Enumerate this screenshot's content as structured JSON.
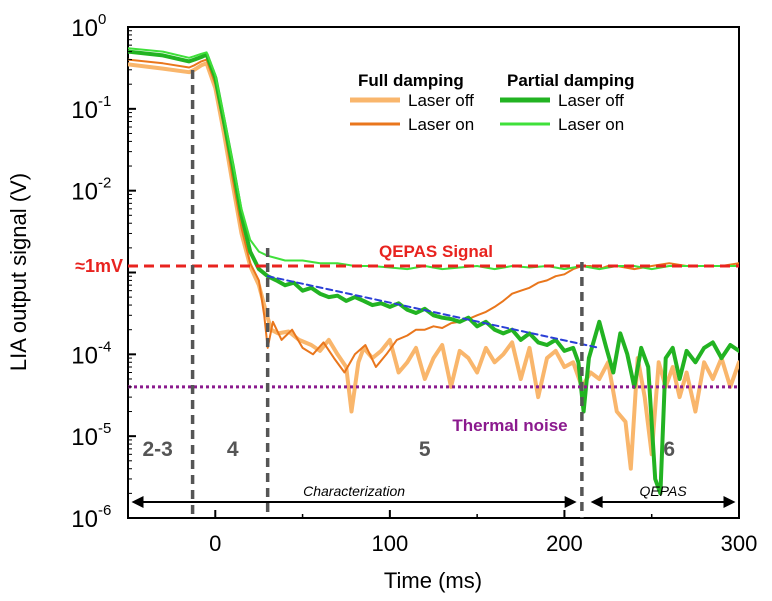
{
  "chart_data": {
    "type": "line",
    "xlabel": "Time (ms)",
    "ylabel": "LIA output signal (V)",
    "xlim": [
      -50,
      300
    ],
    "ylim_log10": [
      -6,
      0
    ],
    "x_ticks": [
      {
        "value": 0,
        "label": "0"
      },
      {
        "value": 100,
        "label": "100"
      },
      {
        "value": 200,
        "label": "200"
      },
      {
        "value": 300,
        "label": "300"
      }
    ],
    "y_ticks": [
      {
        "exp": 0,
        "base": "10",
        "sup": "0"
      },
      {
        "exp": -1,
        "base": "10",
        "sup": "-1"
      },
      {
        "exp": -2,
        "base": "10",
        "sup": "-2"
      },
      {
        "exp": -4,
        "base": "10",
        "sup": "-4"
      },
      {
        "exp": -5,
        "base": "10",
        "sup": "-5"
      },
      {
        "exp": -6,
        "base": "10",
        "sup": "-6"
      }
    ],
    "ref_lines": {
      "qepas_signal": {
        "label": "QEPAS Signal",
        "y": 0.0012,
        "color": "#e8231f"
      },
      "thermal_noise": {
        "label": "Thermal noise",
        "y": 4e-05,
        "color": "#8b1a8e"
      },
      "one_mv_label": "≈1mV"
    },
    "phase_lines_x": [
      -13,
      30,
      210
    ],
    "phase_labels": [
      {
        "label": "2-3",
        "x": -33
      },
      {
        "label": "4",
        "x": 10
      },
      {
        "label": "5",
        "x": 120
      },
      {
        "label": "6",
        "x": 260
      }
    ],
    "arrows": [
      {
        "label": "Characterization",
        "from": -48,
        "to": 207
      },
      {
        "label": "QEPAS",
        "from": 215,
        "to": 298
      }
    ],
    "legend": {
      "full_title": "Full damping",
      "partial_title": "Partial damping",
      "entries": [
        {
          "group": "full",
          "label": "Laser off",
          "color": "#f9b66c",
          "width": 4
        },
        {
          "group": "full",
          "label": "Laser on",
          "color": "#e9761c",
          "width": 2
        },
        {
          "group": "partial",
          "label": "Laser off",
          "color": "#22b322",
          "width": 4
        },
        {
          "group": "partial",
          "label": "Laser on",
          "color": "#3fe03a",
          "width": 2
        }
      ]
    },
    "series": [
      {
        "name": "Full damping – Laser off",
        "color": "#f9b66c",
        "width": 4,
        "points": [
          [
            -50,
            0.35
          ],
          [
            -30,
            0.31
          ],
          [
            -15,
            0.28
          ],
          [
            -12,
            0.3
          ],
          [
            -8,
            0.34
          ],
          [
            -5,
            0.36
          ],
          [
            0,
            0.18
          ],
          [
            5,
            0.05
          ],
          [
            10,
            0.012
          ],
          [
            15,
            0.003
          ],
          [
            20,
            0.0012
          ],
          [
            25,
            0.0007
          ],
          [
            28,
            0.0004
          ],
          [
            32,
            0.0002
          ],
          [
            36,
            0.00018
          ],
          [
            42,
            0.00019
          ],
          [
            48,
            0.00015
          ],
          [
            55,
            0.00013
          ],
          [
            60,
            0.00011
          ],
          [
            65,
            0.00015
          ],
          [
            70,
            0.0001
          ],
          [
            75,
            7e-05
          ],
          [
            78,
            2e-05
          ],
          [
            82,
            8e-05
          ],
          [
            85,
            0.00012
          ],
          [
            90,
            9e-05
          ],
          [
            95,
            0.00011
          ],
          [
            100,
            0.00015
          ],
          [
            105,
            6e-05
          ],
          [
            110,
            8e-05
          ],
          [
            115,
            0.00012
          ],
          [
            120,
            5e-05
          ],
          [
            125,
            9e-05
          ],
          [
            130,
            0.00013
          ],
          [
            135,
            4e-05
          ],
          [
            140,
            0.00011
          ],
          [
            145,
            9e-05
          ],
          [
            150,
            6e-05
          ],
          [
            155,
            0.00012
          ],
          [
            160,
            8e-05
          ],
          [
            165,
            0.0001
          ],
          [
            170,
            0.00014
          ],
          [
            175,
            5e-05
          ],
          [
            180,
            0.00012
          ],
          [
            185,
            3e-05
          ],
          [
            190,
            9e-05
          ],
          [
            195,
            0.00011
          ],
          [
            200,
            7e-05
          ],
          [
            205,
            8e-05
          ],
          [
            210,
            4e-05
          ],
          [
            215,
            6e-05
          ],
          [
            220,
            5e-05
          ],
          [
            225,
            8e-05
          ],
          [
            230,
            2e-05
          ],
          [
            235,
            1.5e-05
          ],
          [
            238,
            4e-06
          ],
          [
            242,
            9e-05
          ],
          [
            246,
            3e-05
          ],
          [
            250,
            6e-06
          ],
          [
            254,
            8e-05
          ],
          [
            258,
            4e-05
          ],
          [
            262,
            7e-05
          ],
          [
            266,
            3e-05
          ],
          [
            270,
            6e-05
          ],
          [
            275,
            2e-05
          ],
          [
            280,
            8e-05
          ],
          [
            285,
            5e-05
          ],
          [
            290,
            9e-05
          ],
          [
            295,
            4e-05
          ],
          [
            300,
            8e-05
          ]
        ]
      },
      {
        "name": "Full damping – Laser on",
        "color": "#e9761c",
        "width": 2,
        "points": [
          [
            -50,
            0.4
          ],
          [
            -30,
            0.36
          ],
          [
            -15,
            0.32
          ],
          [
            -12,
            0.34
          ],
          [
            -8,
            0.38
          ],
          [
            -5,
            0.4
          ],
          [
            0,
            0.2
          ],
          [
            5,
            0.06
          ],
          [
            10,
            0.014
          ],
          [
            15,
            0.0035
          ],
          [
            20,
            0.0013
          ],
          [
            25,
            0.0008
          ],
          [
            28,
            0.0003
          ],
          [
            30,
            0.00012
          ],
          [
            33,
            0.00025
          ],
          [
            38,
            0.00015
          ],
          [
            44,
            0.0002
          ],
          [
            50,
            0.00012
          ],
          [
            56,
            0.0001
          ],
          [
            62,
            0.00014
          ],
          [
            68,
            9e-05
          ],
          [
            74,
            6e-05
          ],
          [
            80,
            0.0001
          ],
          [
            86,
            0.00013
          ],
          [
            92,
            7e-05
          ],
          [
            98,
            0.0001
          ],
          [
            104,
            0.00015
          ],
          [
            110,
            0.00017
          ],
          [
            115,
            0.0002
          ],
          [
            120,
            0.0002
          ],
          [
            125,
            0.00022
          ],
          [
            130,
            0.00021
          ],
          [
            135,
            0.00024
          ],
          [
            140,
            0.00025
          ],
          [
            145,
            0.00027
          ],
          [
            150,
            0.0003
          ],
          [
            155,
            0.00033
          ],
          [
            160,
            0.00038
          ],
          [
            165,
            0.00045
          ],
          [
            170,
            0.00055
          ],
          [
            175,
            0.0006
          ],
          [
            180,
            0.00065
          ],
          [
            185,
            0.00075
          ],
          [
            190,
            0.0008
          ],
          [
            195,
            0.0009
          ],
          [
            200,
            0.00095
          ],
          [
            205,
            0.0011
          ],
          [
            210,
            0.0012
          ],
          [
            215,
            0.0012
          ],
          [
            220,
            0.0011
          ],
          [
            225,
            0.0012
          ],
          [
            230,
            0.0012
          ],
          [
            240,
            0.0011
          ],
          [
            250,
            0.0012
          ],
          [
            260,
            0.0013
          ],
          [
            270,
            0.0012
          ],
          [
            280,
            0.0012
          ],
          [
            290,
            0.0012
          ],
          [
            300,
            0.0013
          ]
        ]
      },
      {
        "name": "Partial damping – Laser off",
        "color": "#22b322",
        "width": 4,
        "points": [
          [
            -50,
            0.5
          ],
          [
            -30,
            0.45
          ],
          [
            -15,
            0.38
          ],
          [
            -12,
            0.4
          ],
          [
            -8,
            0.43
          ],
          [
            -5,
            0.46
          ],
          [
            0,
            0.24
          ],
          [
            5,
            0.07
          ],
          [
            10,
            0.02
          ],
          [
            15,
            0.005
          ],
          [
            20,
            0.0018
          ],
          [
            25,
            0.0011
          ],
          [
            30,
            0.0009
          ],
          [
            35,
            0.0008
          ],
          [
            40,
            0.0007
          ],
          [
            45,
            0.00075
          ],
          [
            50,
            0.0006
          ],
          [
            55,
            0.00065
          ],
          [
            60,
            0.00055
          ],
          [
            65,
            0.0005
          ],
          [
            70,
            0.00052
          ],
          [
            75,
            0.00045
          ],
          [
            80,
            0.0005
          ],
          [
            85,
            0.00045
          ],
          [
            90,
            0.0004
          ],
          [
            95,
            0.00042
          ],
          [
            100,
            0.00038
          ],
          [
            105,
            0.00042
          ],
          [
            110,
            0.00035
          ],
          [
            115,
            0.00032
          ],
          [
            120,
            0.00036
          ],
          [
            125,
            0.0003
          ],
          [
            130,
            0.00028
          ],
          [
            135,
            0.00027
          ],
          [
            140,
            0.00025
          ],
          [
            145,
            0.00028
          ],
          [
            150,
            0.00022
          ],
          [
            155,
            0.00025
          ],
          [
            160,
            0.0002
          ],
          [
            165,
            0.00018
          ],
          [
            170,
            0.0002
          ],
          [
            175,
            0.00015
          ],
          [
            180,
            0.00018
          ],
          [
            185,
            0.00014
          ],
          [
            190,
            0.00013
          ],
          [
            195,
            0.00015
          ],
          [
            200,
            0.00011
          ],
          [
            205,
            0.00012
          ],
          [
            208,
            8e-05
          ],
          [
            211,
            2e-05
          ],
          [
            214,
            9e-05
          ],
          [
            217,
            0.00015
          ],
          [
            220,
            0.00025
          ],
          [
            224,
            0.00012
          ],
          [
            228,
            6e-05
          ],
          [
            232,
            0.00018
          ],
          [
            236,
            0.0001
          ],
          [
            240,
            4e-05
          ],
          [
            244,
            0.00012
          ],
          [
            248,
            7e-05
          ],
          [
            252,
            3e-06
          ],
          [
            255,
            2e-06
          ],
          [
            258,
            9e-05
          ],
          [
            262,
            0.00012
          ],
          [
            266,
            5e-05
          ],
          [
            270,
            0.00011
          ],
          [
            275,
            8e-05
          ],
          [
            280,
            0.00012
          ],
          [
            285,
            0.00014
          ],
          [
            290,
            9e-05
          ],
          [
            295,
            0.00013
          ],
          [
            300,
            0.00011
          ]
        ]
      },
      {
        "name": "Partial damping – Laser on",
        "color": "#3fe03a",
        "width": 2,
        "points": [
          [
            -50,
            0.55
          ],
          [
            -30,
            0.5
          ],
          [
            -15,
            0.42
          ],
          [
            -12,
            0.44
          ],
          [
            -8,
            0.47
          ],
          [
            -5,
            0.49
          ],
          [
            0,
            0.26
          ],
          [
            5,
            0.08
          ],
          [
            10,
            0.022
          ],
          [
            15,
            0.006
          ],
          [
            20,
            0.0025
          ],
          [
            25,
            0.0018
          ],
          [
            30,
            0.0016
          ],
          [
            35,
            0.0015
          ],
          [
            40,
            0.0014
          ],
          [
            50,
            0.0014
          ],
          [
            60,
            0.0013
          ],
          [
            70,
            0.0013
          ],
          [
            80,
            0.0012
          ],
          [
            90,
            0.0012
          ],
          [
            100,
            0.00115
          ],
          [
            110,
            0.0011
          ],
          [
            120,
            0.0012
          ],
          [
            130,
            0.0011
          ],
          [
            140,
            0.00115
          ],
          [
            150,
            0.0012
          ],
          [
            160,
            0.0011
          ],
          [
            170,
            0.0012
          ],
          [
            180,
            0.00115
          ],
          [
            190,
            0.0012
          ],
          [
            200,
            0.0011
          ],
          [
            210,
            0.0012
          ],
          [
            220,
            0.0011
          ],
          [
            230,
            0.0012
          ],
          [
            240,
            0.0012
          ],
          [
            250,
            0.0011
          ],
          [
            260,
            0.0012
          ],
          [
            270,
            0.0012
          ],
          [
            280,
            0.0012
          ],
          [
            290,
            0.0012
          ],
          [
            300,
            0.0012
          ]
        ]
      },
      {
        "name": "Trend fit",
        "color": "#2b3fd6",
        "width": 2,
        "dashed": true,
        "points": [
          [
            30,
            0.0009
          ],
          [
            220,
            0.00012
          ]
        ]
      }
    ]
  }
}
